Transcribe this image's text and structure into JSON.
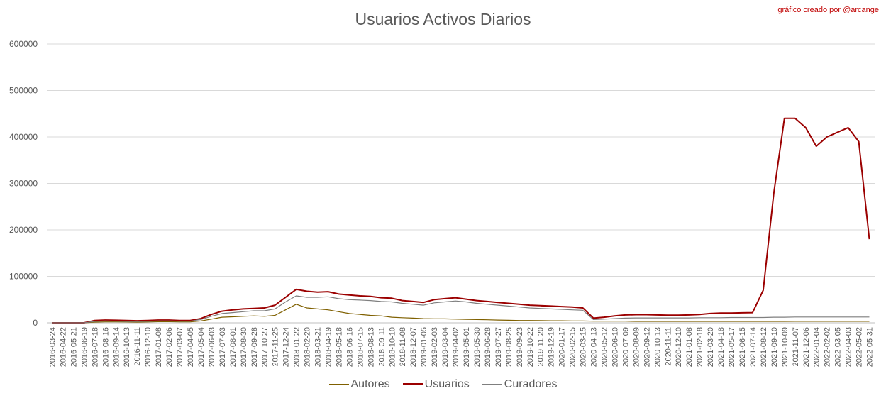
{
  "chart_data": {
    "type": "line",
    "title": "Usuarios Activos Diarios",
    "subtitle": "gráfico creado por @arcange",
    "xlabel": "",
    "ylabel": "",
    "ylim": [
      0,
      600000
    ],
    "yticks": [
      0,
      100000,
      200000,
      300000,
      400000,
      500000,
      600000
    ],
    "grid": "horizontal",
    "legend_position": "bottom",
    "x_tick_labels": [
      "2016-03-24",
      "2016-04-22",
      "2016-05-21",
      "2016-06-19",
      "2016-07-18",
      "2016-08-16",
      "2016-09-14",
      "2016-10-13",
      "2016-11-11",
      "2016-12-10",
      "2017-01-08",
      "2017-02-06",
      "2017-03-07",
      "2017-04-05",
      "2017-05-04",
      "2017-06-03",
      "2017-07-03",
      "2017-08-01",
      "2017-08-30",
      "2017-09-28",
      "2017-10-27",
      "2017-11-25",
      "2017-12-24",
      "2018-01-22",
      "2018-02-20",
      "2018-03-21",
      "2018-04-19",
      "2018-05-18",
      "2018-06-16",
      "2018-07-15",
      "2018-08-13",
      "2018-09-11",
      "2018-10-10",
      "2018-11-08",
      "2018-12-07",
      "2019-01-05",
      "2019-02-03",
      "2019-03-04",
      "2019-04-02",
      "2019-05-01",
      "2019-05-30",
      "2019-06-28",
      "2019-07-27",
      "2019-08-25",
      "2019-09-23",
      "2019-10-22",
      "2019-11-20",
      "2019-12-19",
      "2020-01-17",
      "2020-02-15",
      "2020-03-15",
      "2020-04-13",
      "2020-05-12",
      "2020-06-10",
      "2020-07-09",
      "2020-08-09",
      "2020-09-12",
      "2020-10-13",
      "2020-11-11",
      "2020-12-10",
      "2021-01-08",
      "2021-02-18",
      "2021-03-20",
      "2021-04-18",
      "2021-05-17",
      "2021-06-15",
      "2021-07-14",
      "2021-08-12",
      "2021-09-10",
      "2021-10-09",
      "2021-11-07",
      "2021-12-06",
      "2022-01-04",
      "2022-02-02",
      "2022-03-05",
      "2022-04-03",
      "2022-05-02",
      "2022-05-31"
    ],
    "series": [
      {
        "name": "Autores",
        "color": "#7f6000",
        "values": [
          0,
          0,
          0,
          0,
          1500,
          2000,
          2000,
          1800,
          1500,
          1800,
          2500,
          2500,
          2000,
          2000,
          4000,
          8000,
          12000,
          13000,
          14000,
          15000,
          14000,
          16000,
          28000,
          40000,
          32000,
          30000,
          28000,
          24000,
          20000,
          18000,
          16000,
          15000,
          12000,
          11000,
          10000,
          9000,
          8500,
          8500,
          8000,
          7500,
          7000,
          6500,
          6000,
          5500,
          5000,
          5000,
          4800,
          4500,
          4500,
          4000,
          4000,
          3500,
          3500,
          3500,
          3500,
          3000,
          3000,
          3000,
          3000,
          3000,
          3000,
          3000,
          3000,
          3000,
          3000,
          3000,
          3000,
          3000,
          3000,
          3000,
          3200,
          3200,
          3200,
          3200,
          3200,
          3200,
          3200,
          3200
        ]
      },
      {
        "name": "Usuarios",
        "color": "#9b0000",
        "values": [
          0,
          0,
          0,
          0,
          5000,
          6000,
          5500,
          5000,
          4500,
          5000,
          6000,
          6000,
          5000,
          5000,
          9000,
          18000,
          25000,
          28000,
          30000,
          31000,
          32000,
          38000,
          55000,
          72000,
          68000,
          66000,
          67000,
          62000,
          60000,
          58000,
          57000,
          54000,
          53000,
          48000,
          46000,
          44000,
          50000,
          52000,
          54000,
          51000,
          48000,
          46000,
          44000,
          42000,
          40000,
          38000,
          37000,
          36000,
          35000,
          34000,
          32000,
          10000,
          12000,
          15000,
          17000,
          17500,
          17500,
          17000,
          16500,
          16500,
          17000,
          18000,
          20000,
          21000,
          21000,
          21500,
          22000,
          70000,
          280000,
          440000,
          440000,
          420000,
          380000,
          400000,
          410000,
          420000,
          390000,
          180000
        ]
      },
      {
        "name": "Curadores",
        "color": "#7f7f7f",
        "values": [
          0,
          0,
          0,
          0,
          3000,
          4000,
          3500,
          3000,
          2800,
          3200,
          4000,
          4000,
          3500,
          3500,
          7000,
          14000,
          20000,
          22000,
          24000,
          26000,
          26000,
          30000,
          45000,
          58000,
          55000,
          55000,
          56000,
          52000,
          50000,
          49000,
          48000,
          46000,
          45000,
          42000,
          40000,
          38000,
          43000,
          45000,
          47000,
          45000,
          42000,
          40000,
          38000,
          36000,
          34000,
          32000,
          31000,
          30000,
          29000,
          28000,
          27000,
          7000,
          8000,
          9000,
          10000,
          10500,
          10500,
          10500,
          10500,
          10500,
          10500,
          11000,
          11000,
          11000,
          11500,
          11500,
          11500,
          11500,
          12000,
          12000,
          12500,
          12500,
          12500,
          12500,
          12500,
          12500,
          12500,
          12500
        ]
      }
    ]
  }
}
